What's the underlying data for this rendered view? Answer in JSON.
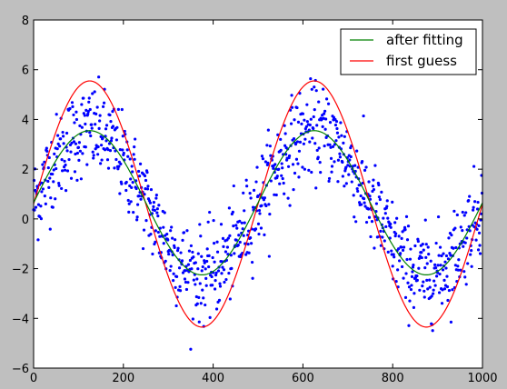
{
  "chart_data": {
    "type": "scatter",
    "title": "",
    "xlabel": "",
    "ylabel": "",
    "xlim": [
      0,
      1000
    ],
    "ylim": [
      -6,
      8
    ],
    "x_ticks": [
      0,
      200,
      400,
      600,
      800,
      1000
    ],
    "y_ticks": [
      -6,
      -4,
      -2,
      0,
      2,
      4,
      6,
      8
    ],
    "grid": false,
    "legend_position": "top-right",
    "data_model": {
      "points": 1000,
      "x_range": [
        0,
        999
      ],
      "y_form": "offset + amplitude * sin(2*pi*x/period + phase) + noise",
      "noise_std": 0.9
    },
    "series": [
      {
        "name": "after fitting",
        "kind": "line",
        "color": "#008000",
        "amplitude": 2.9,
        "offset": 0.65,
        "period": 500,
        "phase": 0
      },
      {
        "name": "first guess",
        "kind": "line",
        "color": "#ff0000",
        "amplitude": 4.95,
        "offset": 0.6,
        "period": 500,
        "phase": 0
      },
      {
        "kind": "scatter",
        "color": "#0000ff",
        "amplitude": 2.9,
        "offset": 0.65,
        "period": 500,
        "phase": 0
      }
    ]
  }
}
